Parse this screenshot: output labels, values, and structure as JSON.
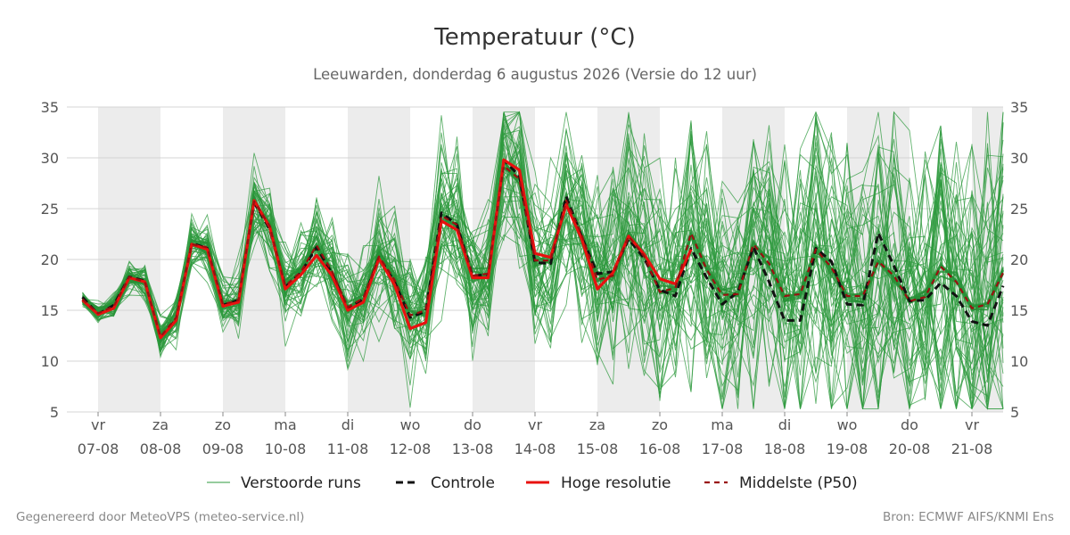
{
  "chart_data": {
    "type": "line",
    "title": "Temperatuur (°C)",
    "subtitle": "Leeuwarden, donderdag  6 augustus 2026 (Versie do 12 uur)",
    "ylim": [
      5,
      35
    ],
    "y_ticks": [
      5,
      10,
      15,
      20,
      25,
      30,
      35
    ],
    "x_time_range": [
      "2026-08-06 12:00",
      "2026-08-21 12:00"
    ],
    "x_day_labels": [
      {
        "day": "vr",
        "date": "07-08"
      },
      {
        "day": "za",
        "date": "08-08"
      },
      {
        "day": "zo",
        "date": "09-08"
      },
      {
        "day": "ma",
        "date": "10-08"
      },
      {
        "day": "di",
        "date": "11-08"
      },
      {
        "day": "wo",
        "date": "12-08"
      },
      {
        "day": "do",
        "date": "13-08"
      },
      {
        "day": "vr",
        "date": "14-08"
      },
      {
        "day": "za",
        "date": "15-08"
      },
      {
        "day": "zo",
        "date": "16-08"
      },
      {
        "day": "ma",
        "date": "17-08"
      },
      {
        "day": "di",
        "date": "18-08"
      },
      {
        "day": "wo",
        "date": "19-08"
      },
      {
        "day": "do",
        "date": "20-08"
      },
      {
        "day": "vr",
        "date": "21-08"
      }
    ],
    "grid": true,
    "weekend_shading": "alternating days shaded grey",
    "legend_position": "bottom",
    "series": [
      {
        "name": "Hoge resolutie",
        "color": "#e8110f",
        "style": "solid",
        "x": [
          "2026-08-06 18:00",
          "2026-08-07 00:00",
          "2026-08-07 06:00",
          "2026-08-07 12:00",
          "2026-08-07 18:00",
          "2026-08-08 00:00",
          "2026-08-08 06:00",
          "2026-08-08 12:00",
          "2026-08-08 18:00",
          "2026-08-09 00:00",
          "2026-08-09 06:00",
          "2026-08-09 12:00",
          "2026-08-09 18:00",
          "2026-08-10 00:00",
          "2026-08-10 06:00",
          "2026-08-10 12:00",
          "2026-08-10 18:00",
          "2026-08-11 00:00",
          "2026-08-11 06:00",
          "2026-08-11 12:00",
          "2026-08-11 18:00",
          "2026-08-12 00:00",
          "2026-08-12 06:00",
          "2026-08-12 12:00",
          "2026-08-12 18:00",
          "2026-08-13 00:00",
          "2026-08-13 06:00",
          "2026-08-13 12:00",
          "2026-08-13 18:00",
          "2026-08-14 00:00",
          "2026-08-14 06:00",
          "2026-08-14 12:00",
          "2026-08-14 18:00",
          "2026-08-15 00:00",
          "2026-08-15 06:00",
          "2026-08-15 12:00",
          "2026-08-15 18:00",
          "2026-08-16 00:00",
          "2026-08-16 06:00",
          "2026-08-16 12:00"
        ],
        "values": [
          16.0,
          14.6,
          15.2,
          18.2,
          17.8,
          12.3,
          14.0,
          21.5,
          21.0,
          15.4,
          15.8,
          25.8,
          23.2,
          17.1,
          18.5,
          20.4,
          18.4,
          15.0,
          15.8,
          20.1,
          17.5,
          13.2,
          13.8,
          23.8,
          22.9,
          18.2,
          18.2,
          29.8,
          28.8,
          20.6,
          20.2,
          25.4,
          22.0,
          17.1,
          18.7,
          22.3,
          20.5,
          18.1,
          17.6,
          21.0
        ]
      },
      {
        "name": "Controle",
        "color": "#111111",
        "style": "dashed",
        "x": [
          "2026-08-06 18:00",
          "2026-08-07 00:00",
          "2026-08-07 06:00",
          "2026-08-07 12:00",
          "2026-08-07 18:00",
          "2026-08-08 00:00",
          "2026-08-08 06:00",
          "2026-08-08 12:00",
          "2026-08-08 18:00",
          "2026-08-09 00:00",
          "2026-08-09 06:00",
          "2026-08-09 12:00",
          "2026-08-09 18:00",
          "2026-08-10 00:00",
          "2026-08-10 06:00",
          "2026-08-10 12:00",
          "2026-08-10 18:00",
          "2026-08-11 00:00",
          "2026-08-11 06:00",
          "2026-08-11 12:00",
          "2026-08-11 18:00",
          "2026-08-12 00:00",
          "2026-08-12 06:00",
          "2026-08-12 12:00",
          "2026-08-12 18:00",
          "2026-08-13 00:00",
          "2026-08-13 06:00",
          "2026-08-13 12:00",
          "2026-08-13 18:00",
          "2026-08-14 00:00",
          "2026-08-14 06:00",
          "2026-08-14 12:00",
          "2026-08-14 18:00",
          "2026-08-15 00:00",
          "2026-08-15 06:00",
          "2026-08-15 12:00",
          "2026-08-15 18:00",
          "2026-08-16 00:00",
          "2026-08-16 06:00",
          "2026-08-16 12:00",
          "2026-08-16 18:00",
          "2026-08-17 00:00",
          "2026-08-17 06:00",
          "2026-08-17 12:00",
          "2026-08-17 18:00",
          "2026-08-18 00:00",
          "2026-08-18 06:00",
          "2026-08-18 12:00",
          "2026-08-18 18:00",
          "2026-08-19 00:00",
          "2026-08-19 06:00",
          "2026-08-19 12:00",
          "2026-08-19 18:00",
          "2026-08-20 00:00",
          "2026-08-20 06:00",
          "2026-08-20 12:00",
          "2026-08-20 18:00",
          "2026-08-21 00:00",
          "2026-08-21 06:00",
          "2026-08-21 12:00"
        ],
        "values": [
          16.3,
          14.6,
          15.5,
          18.3,
          17.9,
          12.3,
          14.1,
          21.6,
          21.1,
          15.5,
          16.0,
          25.6,
          23.0,
          17.3,
          18.7,
          21.2,
          18.6,
          15.2,
          16.1,
          20.2,
          17.8,
          14.3,
          14.9,
          24.6,
          23.4,
          18.4,
          18.5,
          29.8,
          28.2,
          19.7,
          19.6,
          26.2,
          22.2,
          18.6,
          18.8,
          22.0,
          20.1,
          17.0,
          16.4,
          21.1,
          18.2,
          15.6,
          16.8,
          21.2,
          17.8,
          14.0,
          14.0,
          21.1,
          19.8,
          15.6,
          15.5,
          22.6,
          19.4,
          15.9,
          16.0,
          17.7,
          16.4,
          13.9,
          13.5,
          17.4
        ]
      },
      {
        "name": "Middelste (P50)",
        "color": "#9a1010",
        "style": "dashed",
        "x": [
          "2026-08-06 18:00",
          "2026-08-07 00:00",
          "2026-08-07 06:00",
          "2026-08-07 12:00",
          "2026-08-07 18:00",
          "2026-08-08 00:00",
          "2026-08-08 06:00",
          "2026-08-08 12:00",
          "2026-08-08 18:00",
          "2026-08-09 00:00",
          "2026-08-09 06:00",
          "2026-08-09 12:00",
          "2026-08-09 18:00",
          "2026-08-10 00:00",
          "2026-08-10 06:00",
          "2026-08-10 12:00",
          "2026-08-10 18:00",
          "2026-08-11 00:00",
          "2026-08-11 06:00",
          "2026-08-11 12:00",
          "2026-08-11 18:00",
          "2026-08-12 00:00",
          "2026-08-12 06:00",
          "2026-08-12 12:00",
          "2026-08-12 18:00",
          "2026-08-13 00:00",
          "2026-08-13 06:00",
          "2026-08-13 12:00",
          "2026-08-13 18:00",
          "2026-08-14 00:00",
          "2026-08-14 06:00",
          "2026-08-14 12:00",
          "2026-08-14 18:00",
          "2026-08-15 00:00",
          "2026-08-15 06:00",
          "2026-08-15 12:00",
          "2026-08-15 18:00",
          "2026-08-16 00:00",
          "2026-08-16 06:00",
          "2026-08-16 12:00",
          "2026-08-16 18:00",
          "2026-08-17 00:00",
          "2026-08-17 06:00",
          "2026-08-17 12:00",
          "2026-08-17 18:00",
          "2026-08-18 00:00",
          "2026-08-18 06:00",
          "2026-08-18 12:00",
          "2026-08-18 18:00",
          "2026-08-19 00:00",
          "2026-08-19 06:00",
          "2026-08-19 12:00",
          "2026-08-19 18:00",
          "2026-08-20 00:00",
          "2026-08-20 06:00",
          "2026-08-20 12:00",
          "2026-08-20 18:00",
          "2026-08-21 00:00",
          "2026-08-21 06:00",
          "2026-08-21 12:00"
        ],
        "values": [
          16.1,
          14.7,
          15.4,
          18.3,
          17.8,
          12.4,
          14.3,
          21.5,
          21.2,
          15.6,
          16.0,
          25.7,
          23.3,
          17.4,
          18.8,
          21.4,
          18.8,
          15.3,
          16.2,
          20.3,
          18.0,
          14.5,
          15.0,
          24.3,
          23.4,
          18.4,
          18.6,
          29.2,
          27.9,
          19.9,
          19.9,
          25.8,
          22.4,
          18.0,
          18.4,
          22.3,
          20.3,
          16.8,
          17.2,
          22.6,
          19.0,
          16.5,
          16.6,
          21.5,
          19.6,
          16.4,
          16.6,
          21.0,
          19.2,
          16.4,
          16.4,
          19.8,
          18.4,
          15.9,
          16.3,
          19.3,
          17.8,
          15.2,
          15.6,
          18.7
        ]
      },
      {
        "name": "Verstoorde runs",
        "color": "#2e9a3e",
        "style": "thin",
        "note_ensemble": "ensemble members spread around P50"
      }
    ]
  },
  "legend": {
    "perturbed": "Verstoorde runs",
    "control": "Controle",
    "high_res": "Hoge resolutie",
    "median": "Middelste (P50)"
  },
  "footer": {
    "left": "Gegenereerd door MeteoVPS (meteo-service.nl)",
    "right": "Bron: ECMWF AIFS/KNMI Ens"
  }
}
